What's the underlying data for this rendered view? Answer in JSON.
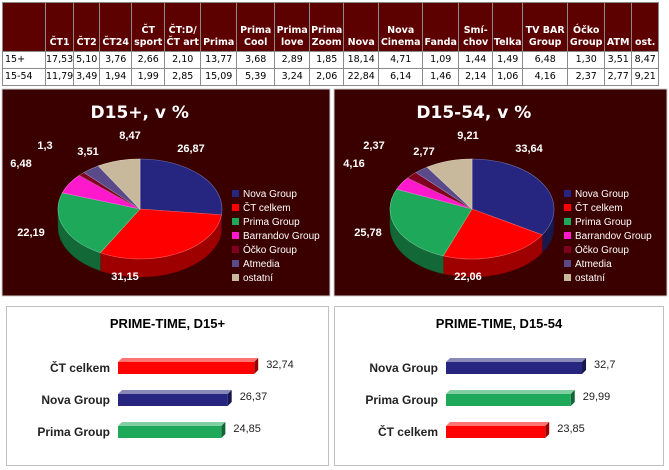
{
  "colors": {
    "header_bg": "#5c0000",
    "pie_bg": "#3a0000",
    "Nova Group": "#262680",
    "ČT celkem": "#ff0000",
    "Prima Group": "#1ea85a",
    "Barrandov Group": "#ff19cc",
    "Óčko Group": "#800020",
    "Atmedia": "#5a4a8a",
    "ostatní": "#c8b89c"
  },
  "table": {
    "columns": [
      [
        "",
        ""
      ],
      [
        "",
        "ČT1"
      ],
      [
        "",
        "ČT2"
      ],
      [
        "",
        "ČT24"
      ],
      [
        "ČT",
        "sport"
      ],
      [
        "ČT:D/",
        "ČT art"
      ],
      [
        "",
        "Prima"
      ],
      [
        "Prima",
        "Cool"
      ],
      [
        "Prima",
        "love"
      ],
      [
        "Prima",
        "Zoom"
      ],
      [
        "",
        "Nova"
      ],
      [
        "Nova",
        "Cinema"
      ],
      [
        "",
        "Fanda"
      ],
      [
        "Smí-",
        "chov"
      ],
      [
        "",
        "Telka"
      ],
      [
        "TV BAR",
        "Group"
      ],
      [
        "Óčko",
        "Group"
      ],
      [
        "",
        "ATM"
      ],
      [
        "",
        "ost."
      ]
    ],
    "rows": [
      [
        "15+",
        "17,53",
        "5,10",
        "3,76",
        "2,66",
        "2,10",
        "13,77",
        "3,68",
        "2,89",
        "1,85",
        "18,14",
        "4,71",
        "1,09",
        "1,44",
        "1,49",
        "6,48",
        "1,30",
        "3,51",
        "8,47"
      ],
      [
        "15-54",
        "11,79",
        "3,49",
        "1,94",
        "1,99",
        "2,85",
        "15,09",
        "5,39",
        "3,24",
        "2,06",
        "22,84",
        "6,14",
        "1,46",
        "2,14",
        "1,06",
        "4,16",
        "2,37",
        "2,77",
        "9,21"
      ]
    ]
  },
  "chart_data": [
    {
      "type": "pie",
      "title": "D15+, v %",
      "labels": [
        "Nova Group",
        "ČT celkem",
        "Prima Group",
        "Barrandov Group",
        "Óčko Group",
        "Atmedia",
        "ostatní"
      ],
      "values": [
        26.87,
        31.15,
        22.19,
        6.48,
        1.3,
        3.51,
        8.47
      ],
      "value_labels": [
        "26,87",
        "31,15",
        "22,19",
        "6,48",
        "1,3",
        "3,51",
        "8,47"
      ],
      "legend": "right"
    },
    {
      "type": "pie",
      "title": "D15-54, v %",
      "labels": [
        "Nova Group",
        "ČT celkem",
        "Prima Group",
        "Barrandov Group",
        "Óčko Group",
        "Atmedia",
        "ostatní"
      ],
      "values": [
        33.64,
        22.06,
        25.78,
        4.16,
        2.37,
        2.77,
        9.21
      ],
      "value_labels": [
        "33,64",
        "22,06",
        "25,78",
        "4,16",
        "2,37",
        "2,77",
        "9,21"
      ],
      "legend": "right"
    },
    {
      "type": "bar",
      "orientation": "horizontal",
      "title": "PRIME-TIME, D15+",
      "categories": [
        "ČT celkem",
        "Nova Group",
        "Prima Group"
      ],
      "values": [
        32.74,
        26.37,
        24.85
      ],
      "value_labels": [
        "32,74",
        "26,37",
        "24,85"
      ],
      "colors": [
        "#ff0000",
        "#262680",
        "#1ea85a"
      ],
      "xlim": [
        0,
        35
      ]
    },
    {
      "type": "bar",
      "orientation": "horizontal",
      "title": "PRIME-TIME, D15-54",
      "categories": [
        "Nova Group",
        "Prima Group",
        "ČT celkem"
      ],
      "values": [
        32.7,
        29.99,
        23.85
      ],
      "value_labels": [
        "32,7",
        "29,99",
        "23,85"
      ],
      "colors": [
        "#262680",
        "#1ea85a",
        "#ff0000"
      ],
      "xlim": [
        0,
        35
      ]
    }
  ]
}
